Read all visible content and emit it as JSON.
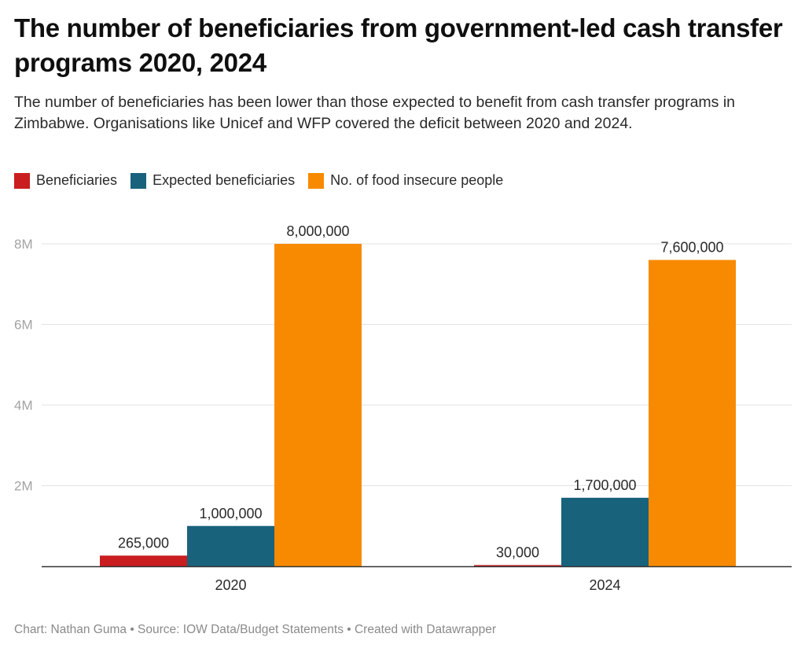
{
  "header": {
    "title": "The number of beneficiaries from government-led cash transfer programs 2020, 2024",
    "subtitle": "The number of beneficiaries has been lower than those expected to benefit from cash transfer programs in Zimbabwe. Organisations like Unicef and WFP covered the deficit between 2020 and 2024."
  },
  "legend": [
    {
      "label": "Beneficiaries",
      "color": "#c91d1f"
    },
    {
      "label": "Expected beneficiaries",
      "color": "#18627c"
    },
    {
      "label": "No. of food insecure people",
      "color": "#f78a00"
    }
  ],
  "footer": {
    "text": "Chart: Nathan Guma  • Source: IOW Data/Budget Statements • Created with Datawrapper"
  },
  "chart_data": {
    "type": "bar",
    "title": "The number of beneficiaries from government-led cash transfer programs 2020, 2024",
    "xlabel": "",
    "ylabel": "",
    "categories": [
      "2020",
      "2024"
    ],
    "series": [
      {
        "name": "Beneficiaries",
        "color": "#c91d1f",
        "values": [
          265000,
          30000
        ],
        "labels": [
          "265,000",
          "30,000"
        ]
      },
      {
        "name": "Expected beneficiaries",
        "color": "#18627c",
        "values": [
          1000000,
          1700000
        ],
        "labels": [
          "1,000,000",
          "1,700,000"
        ]
      },
      {
        "name": "No. of food insecure people",
        "color": "#f78a00",
        "values": [
          8000000,
          7600000
        ],
        "labels": [
          "8,000,000",
          "7,600,000"
        ]
      }
    ],
    "ylim": [
      0,
      8000000
    ],
    "yticks": [
      {
        "value": 2000000,
        "label": "2M"
      },
      {
        "value": 4000000,
        "label": "4M"
      },
      {
        "value": 6000000,
        "label": "6M"
      },
      {
        "value": 8000000,
        "label": "8M"
      }
    ],
    "grid": true,
    "legend_position": "top-left"
  }
}
